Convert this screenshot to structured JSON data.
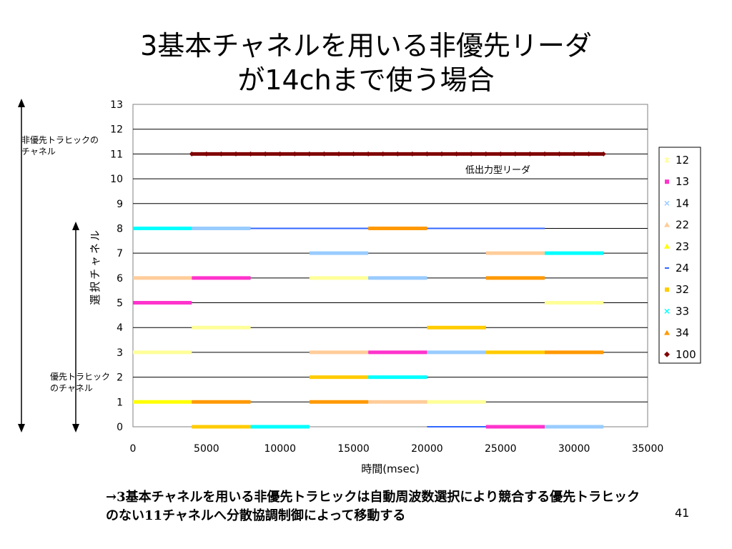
{
  "slide": {
    "title_line1": "3基本チャネルを用いる非優先リーダ",
    "title_line2": "が14chまで使う場合",
    "annotation_top": "非優先トラヒックの\nチャネル",
    "annotation_bottom": "優先トラヒック\nのチャネル",
    "annotation_low_power": "低出力型リーダ",
    "footer": "→3基本チャネルを用いる非優先トラヒックは自動周波数選択により競合する優先トラヒックのない11チャネルへ分散協調制御によって移動する",
    "page_number": "41"
  },
  "chart_data": {
    "type": "scatter",
    "title": "",
    "xlabel": "時間(msec)",
    "ylabel": "選択チャネル",
    "xlim": [
      0,
      35000
    ],
    "ylim": [
      0,
      13
    ],
    "xticks": [
      0,
      5000,
      10000,
      15000,
      20000,
      25000,
      30000,
      35000
    ],
    "yticks": [
      0,
      1,
      2,
      3,
      4,
      5,
      6,
      7,
      8,
      9,
      10,
      11,
      12,
      13
    ],
    "grid": "horizontal",
    "legend_position": "right",
    "series": [
      {
        "name": "12",
        "color": "#ffff99",
        "marker": "star",
        "segments": [
          [
            0,
            4000,
            3
          ],
          [
            4000,
            8000,
            4
          ],
          [
            12000,
            16000,
            6
          ],
          [
            20000,
            24000,
            1
          ],
          [
            28000,
            32000,
            5
          ]
        ]
      },
      {
        "name": "13",
        "color": "#ff33cc",
        "marker": "square",
        "segments": [
          [
            0,
            4000,
            5
          ],
          [
            4000,
            8000,
            6
          ],
          [
            16000,
            20000,
            3
          ],
          [
            24000,
            28000,
            0
          ]
        ]
      },
      {
        "name": "14",
        "color": "#99ccff",
        "marker": "x",
        "segments": [
          [
            4000,
            8000,
            8
          ],
          [
            12000,
            16000,
            7
          ],
          [
            16000,
            20000,
            6
          ],
          [
            20000,
            24000,
            3
          ],
          [
            28000,
            32000,
            0
          ]
        ]
      },
      {
        "name": "22",
        "color": "#ffcc99",
        "marker": "triangle",
        "segments": [
          [
            0,
            4000,
            6
          ],
          [
            12000,
            16000,
            3
          ],
          [
            16000,
            20000,
            1
          ],
          [
            24000,
            28000,
            7
          ]
        ]
      },
      {
        "name": "23",
        "color": "#ffff00",
        "marker": "triangle",
        "segments": [
          [
            0,
            4000,
            1
          ]
        ]
      },
      {
        "name": "24",
        "color": "#3366ff",
        "marker": "dash",
        "segments": [
          [
            8000,
            16000,
            8
          ],
          [
            20000,
            28000,
            8
          ],
          [
            20000,
            24000,
            0
          ]
        ]
      },
      {
        "name": "32",
        "color": "#ffcc00",
        "marker": "square",
        "segments": [
          [
            4000,
            8000,
            0
          ],
          [
            12000,
            16000,
            2
          ],
          [
            20000,
            24000,
            4
          ],
          [
            24000,
            28000,
            3
          ]
        ]
      },
      {
        "name": "33",
        "color": "#00ffff",
        "marker": "x",
        "segments": [
          [
            0,
            4000,
            8
          ],
          [
            8000,
            12000,
            0
          ],
          [
            16000,
            20000,
            2
          ],
          [
            28000,
            32000,
            7
          ]
        ]
      },
      {
        "name": "34",
        "color": "#ff9900",
        "marker": "triangle",
        "segments": [
          [
            4000,
            8000,
            1
          ],
          [
            12000,
            16000,
            1
          ],
          [
            16000,
            20000,
            8
          ],
          [
            24000,
            28000,
            6
          ],
          [
            28000,
            32000,
            3
          ]
        ]
      },
      {
        "name": "100",
        "color": "#800000",
        "marker": "diamond",
        "segments": [
          [
            4000,
            32000,
            11
          ]
        ]
      }
    ]
  }
}
